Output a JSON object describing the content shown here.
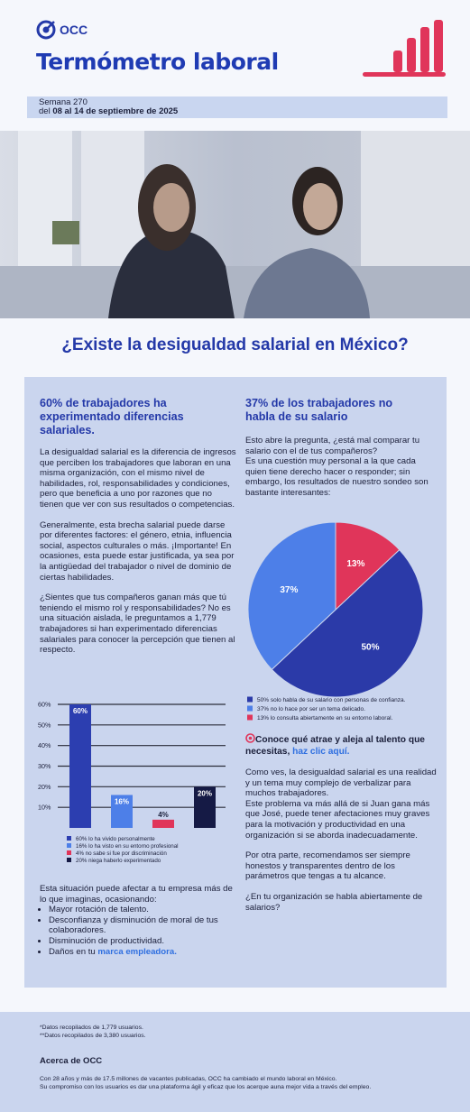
{
  "header": {
    "brand": "OCC",
    "title": "Termómetro laboral",
    "week": "Semana 270",
    "date_prefix": "del ",
    "date_range": "08 al 14 de septiembre de 2025"
  },
  "headline": "¿Existe la desigualdad salarial en México?",
  "left": {
    "heading": "60% de trabajadores ha experimentado diferencias salariales.",
    "paragraphs": [
      "La desigualdad salarial es la diferencia de ingresos que perciben los trabajadores que laboran en una misma organización, con el mismo nivel de habilidades, rol, responsabilidades y condiciones, pero que beneficia a uno por razones que no tienen que ver con sus resultados o competencias.",
      "Generalmente, esta brecha salarial puede darse por diferentes factores: el género, etnia, influencia social, aspectos culturales o más. ¡Importante! En ocasiones, esta puede estar justificada, ya sea por la antigüedad del trabajador o nivel de dominio de ciertas habilidades.",
      "¿Sientes que tus compañeros ganan más que tú teniendo el mismo rol y responsabilidades? No es una situación aislada, le preguntamos a 1,779 trabajadores si han experimentado diferencias salariales para conocer la percepción que tienen al respecto."
    ],
    "closing_intro": "Esta situación puede afectar a tu empresa más de lo que imaginas, ocasionando:",
    "bullets": [
      "Mayor rotación de talento.",
      "Desconfianza y disminución de moral de tus colaboradores.",
      "Disminución de productividad."
    ],
    "last_bullet_prefix": "Daños en tu ",
    "last_bullet_link": "marca empleadora."
  },
  "right": {
    "heading": "37% de los trabajadores no habla de su salario",
    "intro": [
      "Esto abre la pregunta, ¿está mal comparar tu salario con el de tus compañeros?",
      "Es una cuestión muy personal a la que cada quien tiene derecho hacer o responder; sin embargo, los resultados de nuestro sondeo son bastante interesantes:"
    ],
    "cta_text": "Conoce qué atrae y aleja al talento que necesitas, ",
    "cta_link": "haz clic aquí.",
    "paragraph_a": [
      "Como ves, la desigualdad salarial es una realidad y un tema muy complejo de verbalizar para muchos trabajadores.",
      "Este problema va más allá de si Juan gana más que José, puede tener afectaciones muy graves para la motivación y productividad en una organización si se aborda inadecuadamente."
    ],
    "paragraph_b": "Por otra parte, recomendamos ser siempre honestos y transparentes dentro de los parámetros que tengas a tu alcance.",
    "paragraph_c": "¿En tu organización se habla abiertamente de salarios?"
  },
  "footer": {
    "notes": [
      "*Datos recopilados de 1,779 usuarios.",
      "**Datos recopilados de 3,380 usuarios."
    ],
    "about_title": "Acerca de OCC",
    "about_lines": [
      "Con 28 años y más de 17.5 millones de vacantes publicadas, OCC ha cambiado el mundo laboral en México.",
      "Su compromiso con los usuarios es dar una plataforma ágil y eficaz que los acerque auna mejor vida a través del empleo."
    ]
  },
  "chart_data": [
    {
      "type": "bar",
      "categories": [
        "60% lo ha vivido personalmente",
        "16% lo ha visto en su entorno profesional",
        "4% no sabe si fue por discriminación",
        "20% niega haberlo experimentado"
      ],
      "values": [
        60,
        16,
        4,
        20
      ],
      "value_labels": [
        "60%",
        "16%",
        "4%",
        "20%"
      ],
      "colors": [
        "#2c3eb0",
        "#4d7fe8",
        "#e0355a",
        "#151a45"
      ],
      "ylim": [
        0,
        60
      ],
      "yticks": [
        {
          "value": 10,
          "label": "10%"
        },
        {
          "value": 20,
          "label": "20%"
        },
        {
          "value": 30,
          "label": "30%"
        },
        {
          "value": 40,
          "label": "40%"
        },
        {
          "value": 50,
          "label": "50%"
        },
        {
          "value": 60,
          "label": "60%"
        }
      ],
      "grid": true
    },
    {
      "type": "pie",
      "categories": [
        "50% solo habla de su salario con personas de confianza.",
        "37% no lo hace por ser un tema delicado.",
        "13% lo consulta abiertamente en su entorno laboral."
      ],
      "values": [
        50,
        37,
        13
      ],
      "value_labels": [
        "50%",
        "37%",
        "13%"
      ],
      "colors": [
        "#2b3aa8",
        "#4d7fe8",
        "#e0355a"
      ]
    }
  ]
}
